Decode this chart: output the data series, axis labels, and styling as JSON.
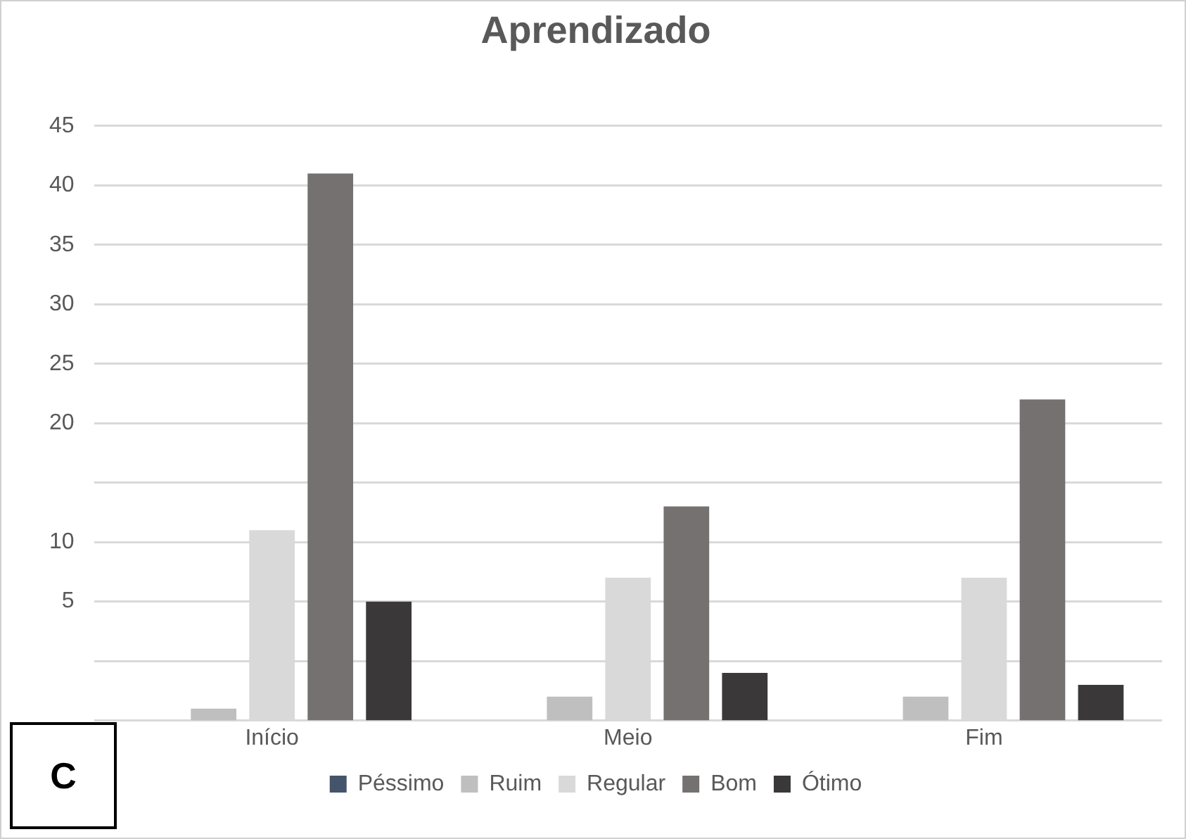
{
  "chart_data": {
    "type": "bar",
    "title": "Aprendizado",
    "categories": [
      "Início",
      "Meio",
      "Fim"
    ],
    "series": [
      {
        "name": "Péssimo",
        "color": "#44546a",
        "values": [
          null,
          null,
          null
        ]
      },
      {
        "name": "Ruim",
        "color": "#bfbfbf",
        "values": [
          1,
          2,
          2
        ],
        "base": [
          -5,
          -5,
          -5
        ]
      },
      {
        "name": "Regular",
        "color": "#d9d9d9",
        "values": [
          16,
          12,
          12
        ],
        "base": [
          -5,
          -5,
          -5
        ]
      },
      {
        "name": "Bom",
        "color": "#767171",
        "values": [
          46,
          18,
          27
        ],
        "base": [
          -5,
          -5,
          -5
        ]
      },
      {
        "name": "Ótimo",
        "color": "#3a3838",
        "values": [
          10,
          4,
          3
        ],
        "base": [
          -5,
          -5,
          -5
        ]
      }
    ],
    "ylim": [
      -5,
      45
    ],
    "yticks": [
      {
        "value": -5,
        "label": null
      },
      {
        "value": 0,
        "label": null
      },
      5,
      10,
      {
        "value": 15,
        "label": null
      },
      20,
      25,
      30,
      35,
      40,
      45
    ],
    "grid": "y",
    "legend": "bottom",
    "annotations": [
      "C"
    ]
  }
}
